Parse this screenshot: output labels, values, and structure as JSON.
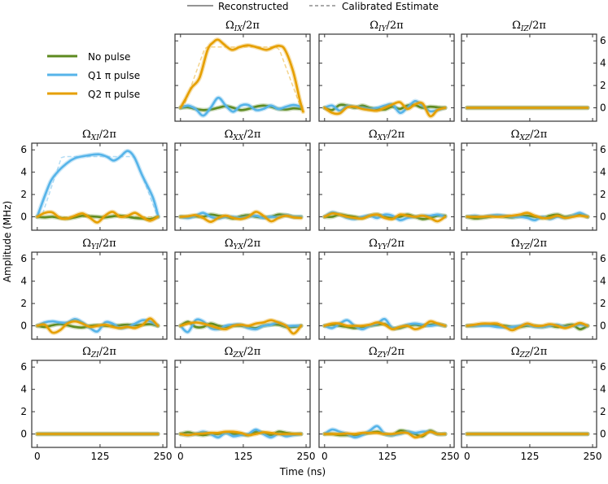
{
  "chart_data": {
    "type": "line",
    "layout": "4x4 grid of panels, top-left cell holds legend",
    "xlabel": "Time (ns)",
    "ylabel": "Amplitude (MHz)",
    "xlim": [
      -11,
      258
    ],
    "ylim": [
      -1.2,
      6.6
    ],
    "xticks": [
      0,
      125,
      250
    ],
    "yticks": [
      0,
      2,
      4,
      6
    ],
    "grid": false,
    "style_legend": [
      {
        "label": "Reconstructed",
        "style": "solid"
      },
      {
        "label": "Calibrated Estimate",
        "style": "dashed"
      }
    ],
    "series_legend": [
      {
        "key": "none",
        "label": "No pulse",
        "color": "#5d8a1f"
      },
      {
        "key": "q1",
        "label": "Q1 π pulse",
        "color": "#56b4e9"
      },
      {
        "key": "q2",
        "label": "Q2 π pulse",
        "color": "#e69f00"
      }
    ],
    "t_common": [
      0,
      15,
      30,
      45,
      60,
      75,
      90,
      105,
      120,
      135,
      150,
      165,
      180,
      195,
      210,
      225,
      240
    ],
    "panels": [
      {
        "title": {
          "sym": "Ω",
          "sub": "IX",
          "rest": "/2π"
        },
        "none": [
          0,
          0.05,
          -0.1,
          -0.2,
          -0.15,
          0,
          0.15,
          0,
          -0.2,
          -0.1,
          0.1,
          0.2,
          0.1,
          -0.1,
          -0.15,
          -0.05,
          -0.1
        ],
        "q1": [
          0,
          0.2,
          -0.1,
          -0.7,
          0,
          0.9,
          0.2,
          -0.35,
          0.2,
          0.25,
          -0.2,
          -0.1,
          0.2,
          -0.1,
          0.1,
          0.25,
          0.1
        ],
        "q2": {
          "t": [
            0,
            10,
            22,
            38,
            54,
            66,
            75,
            86,
            102,
            118,
            134,
            150,
            171,
            186,
            197,
            208,
            224,
            237,
            244
          ],
          "v": [
            0,
            0.8,
            1.8,
            2.7,
            5.2,
            5.9,
            6.1,
            5.7,
            5.2,
            5.45,
            5.6,
            5.45,
            5.2,
            5.45,
            5.55,
            5.2,
            3.3,
            0.8,
            -0.35
          ]
        },
        "calibrated": [
          {
            "key": "q2",
            "t": [
              0,
              8,
              48,
              54,
              190,
              197,
              238,
              244
            ],
            "v": [
              0,
              0.3,
              5.3,
              5.45,
              5.45,
              5.2,
              0.2,
              0
            ]
          }
        ]
      },
      {
        "title": {
          "sym": "Ω",
          "sub": "IY",
          "rest": "/2π"
        },
        "none": [
          0,
          -0.2,
          0.25,
          0.2,
          0,
          0.2,
          0,
          -0.1,
          -0.15,
          0.1,
          -0.1,
          0.2,
          0.25,
          0,
          0.1,
          0.05,
          0
        ],
        "q1": [
          0,
          0.2,
          -0.25,
          0.15,
          0.1,
          0,
          -0.1,
          0,
          0.2,
          0.3,
          -0.45,
          0,
          0.6,
          0.2,
          -0.3,
          -0.2,
          0
        ],
        "q2": [
          0,
          -0.45,
          -0.5,
          0.05,
          0.1,
          -0.1,
          -0.2,
          -0.25,
          0,
          0.3,
          0.5,
          -0.1,
          0.3,
          0.4,
          -0.75,
          -0.2,
          0
        ]
      },
      {
        "title": {
          "sym": "Ω",
          "sub": "IZ",
          "rest": "/2π"
        },
        "none": [
          0,
          0,
          0,
          0,
          0,
          0,
          0,
          0,
          0,
          0,
          0,
          0,
          0,
          0,
          0,
          0,
          0
        ],
        "q1": [
          0,
          0,
          0,
          0,
          0,
          0,
          0,
          0,
          0,
          0,
          0,
          0,
          0,
          0,
          0,
          0,
          0
        ],
        "q2": [
          0,
          0,
          0,
          0,
          0,
          0,
          0,
          0,
          0,
          0,
          0,
          0,
          0,
          0,
          0,
          0,
          0
        ]
      },
      {
        "title": {
          "sym": "Ω",
          "sub": "XI",
          "rest": "/2π"
        },
        "none": [
          0,
          -0.05,
          0,
          -0.1,
          -0.15,
          -0.05,
          0.1,
          0.05,
          0,
          -0.05,
          0.05,
          0.1,
          0,
          -0.1,
          -0.15,
          -0.2,
          0
        ],
        "q1": {
          "t": [
            0,
            14,
            27,
            40,
            51,
            65,
            78,
            100,
            122,
            138,
            151,
            160,
            167,
            180,
            193,
            209,
            230,
            241
          ],
          "v": [
            0,
            1.75,
            3.2,
            4.0,
            4.5,
            5.0,
            5.3,
            5.5,
            5.6,
            5.4,
            5.05,
            5.2,
            5.45,
            5.9,
            5.35,
            3.7,
            1.75,
            0
          ]
        },
        "q2": [
          0,
          0.35,
          0.4,
          -0.1,
          -0.15,
          0.1,
          0.3,
          -0.1,
          -0.5,
          0.1,
          0.45,
          0,
          0.1,
          0.35,
          -0.05,
          -0.35,
          0
        ],
        "calibrated": [
          {
            "key": "q1",
            "t": [
              0,
              10,
              48,
              55,
              190,
              197,
              238,
              242
            ],
            "v": [
              0,
              0.2,
              5.3,
              5.4,
              5.4,
              5.1,
              0.2,
              0
            ]
          },
          {
            "key": "q2",
            "t": [
              0,
              242
            ],
            "v": [
              0,
              0
            ]
          }
        ]
      },
      {
        "title": {
          "sym": "Ω",
          "sub": "XX",
          "rest": "/2π"
        },
        "none": [
          0,
          0,
          0.05,
          0,
          0.2,
          0.1,
          0,
          -0.15,
          0.05,
          0.15,
          0,
          -0.05,
          0,
          0.2,
          0.15,
          0,
          0
        ],
        "q1": [
          0,
          -0.1,
          0.1,
          0.35,
          0,
          -0.15,
          0,
          0,
          -0.1,
          0,
          0.1,
          -0.1,
          0,
          -0.05,
          0.15,
          0,
          0
        ],
        "q2": [
          0,
          0.05,
          0.15,
          -0.1,
          -0.45,
          -0.1,
          0.1,
          -0.1,
          -0.2,
          0,
          0.45,
          0.1,
          -0.4,
          -0.1,
          0.1,
          -0.05,
          -0.1
        ]
      },
      {
        "title": {
          "sym": "Ω",
          "sub": "XY",
          "rest": "/2π"
        },
        "none": [
          0,
          0,
          0.2,
          0.1,
          0,
          -0.1,
          0.1,
          0.2,
          0,
          -0.1,
          0,
          0.2,
          0,
          -0.2,
          -0.1,
          0.1,
          0.1
        ],
        "q1": [
          0,
          0.4,
          0.2,
          -0.1,
          -0.2,
          0,
          0.1,
          -0.1,
          0.2,
          0.1,
          -0.3,
          -0.1,
          0,
          0.1,
          0.1,
          0.2,
          0
        ],
        "q2": [
          0,
          0.3,
          0.2,
          0,
          -0.1,
          -0.15,
          0.1,
          0.2,
          -0.1,
          -0.2,
          0.2,
          0.1,
          0,
          0.1,
          -0.1,
          -0.4,
          0
        ]
      },
      {
        "title": {
          "sym": "Ω",
          "sub": "XZ",
          "rest": "/2π"
        },
        "none": [
          0,
          -0.15,
          -0.1,
          0,
          0.1,
          0,
          -0.05,
          0.05,
          0.1,
          0,
          -0.1,
          0.1,
          0.2,
          0,
          0.1,
          0.2,
          0
        ],
        "q1": [
          0,
          0.1,
          0,
          0.1,
          0.15,
          0.1,
          0,
          0,
          -0.1,
          -0.3,
          0,
          -0.2,
          0,
          -0.1,
          0.1,
          0.35,
          0
        ],
        "q2": [
          0,
          0,
          0,
          0.05,
          0,
          0.05,
          0.1,
          0.2,
          0.35,
          0.1,
          -0.1,
          -0.1,
          0.1,
          -0.1,
          0,
          0.1,
          0
        ]
      },
      {
        "title": {
          "sym": "Ω",
          "sub": "YI",
          "rest": "/2π"
        },
        "none": [
          0,
          -0.1,
          0.05,
          0.15,
          0.05,
          -0.1,
          -0.15,
          0,
          0.05,
          0,
          0,
          0.05,
          0.1,
          0.05,
          0.1,
          0.15,
          0
        ],
        "q1": [
          0,
          0.3,
          0.4,
          0.3,
          0.3,
          0.6,
          0.3,
          -0.2,
          -0.5,
          0.3,
          0.2,
          -0.2,
          -0.1,
          0.2,
          0.5,
          0.4,
          0
        ],
        "q2": [
          0,
          0.1,
          -0.6,
          -0.4,
          0.2,
          0.4,
          0.2,
          -0.1,
          0,
          0.1,
          -0.1,
          -0.2,
          -0.1,
          -0.2,
          0.1,
          0.65,
          0
        ]
      },
      {
        "title": {
          "sym": "Ω",
          "sub": "YX",
          "rest": "/2π"
        },
        "none": [
          0,
          0.35,
          -0.1,
          -0.1,
          0.2,
          0,
          -0.1,
          0,
          0,
          -0.1,
          -0.2,
          0,
          0.1,
          0.1,
          -0.1,
          -0.1,
          0
        ],
        "q1": [
          0,
          -0.55,
          0.5,
          0.4,
          -0.2,
          -0.3,
          0,
          0.1,
          0.1,
          -0.2,
          -0.3,
          0,
          0.1,
          0.3,
          0,
          0,
          0
        ],
        "q2": [
          0,
          0.2,
          0.3,
          0.2,
          0,
          -0.2,
          -0.3,
          0,
          0.1,
          0,
          0.2,
          0.3,
          0.5,
          0.3,
          0,
          -0.7,
          0
        ]
      },
      {
        "title": {
          "sym": "Ω",
          "sub": "YY",
          "rest": "/2π"
        },
        "none": [
          0,
          0.1,
          0,
          -0.1,
          -0.2,
          -0.1,
          0,
          0.1,
          0.15,
          -0.2,
          -0.2,
          0,
          0.1,
          0,
          0.1,
          0.15,
          0
        ],
        "q1": [
          0,
          -0.2,
          0.2,
          0.5,
          0,
          -0.3,
          0,
          0.2,
          0.6,
          -0.2,
          -0.1,
          0.1,
          0.2,
          0.1,
          0,
          0.1,
          0
        ],
        "q2": [
          0,
          0.2,
          0.2,
          0,
          0,
          0,
          0.1,
          0.3,
          0.1,
          -0.3,
          -0.1,
          0,
          -0.3,
          -0.1,
          0.4,
          0.2,
          0
        ]
      },
      {
        "title": {
          "sym": "Ω",
          "sub": "YZ",
          "rest": "/2π"
        },
        "none": [
          0,
          0,
          0.1,
          0.1,
          0,
          0,
          -0.1,
          -0.1,
          0,
          0,
          -0.1,
          0,
          -0.1,
          0,
          0.1,
          -0.3,
          0
        ],
        "q1": [
          0,
          0,
          0,
          0,
          -0.1,
          -0.15,
          -0.1,
          0,
          0.1,
          -0.1,
          -0.1,
          0,
          0.1,
          -0.1,
          0,
          0.1,
          0
        ],
        "q2": [
          0,
          0.1,
          0.2,
          0.2,
          0.2,
          -0.1,
          -0.4,
          -0.1,
          0.2,
          0,
          0,
          0.15,
          0,
          -0.2,
          0,
          0.25,
          0
        ]
      },
      {
        "title": {
          "sym": "Ω",
          "sub": "ZI",
          "rest": "/2π"
        },
        "none": [
          0,
          0,
          0,
          0,
          0,
          0,
          0,
          0,
          0,
          0,
          0,
          0,
          0,
          0,
          0,
          0,
          0
        ],
        "q1": [
          0,
          0,
          0,
          0,
          0,
          0,
          0,
          0,
          0,
          0,
          0,
          0,
          0,
          0,
          0,
          0,
          0
        ],
        "q2": [
          0,
          0,
          0,
          0,
          0,
          0,
          0,
          0,
          0,
          0,
          0,
          0,
          0,
          0,
          0,
          0,
          0
        ]
      },
      {
        "title": {
          "sym": "Ω",
          "sub": "ZX",
          "rest": "/2π"
        },
        "none": [
          0,
          0.15,
          0,
          -0.1,
          0,
          0,
          0.1,
          0,
          0,
          -0.1,
          0.2,
          0.1,
          -0.1,
          0.2,
          0.1,
          0,
          0
        ],
        "q1": [
          0,
          -0.1,
          0,
          0.2,
          0,
          -0.3,
          0.1,
          -0.2,
          -0.1,
          0,
          0.4,
          0,
          -0.3,
          0,
          -0.2,
          -0.1,
          0
        ],
        "q2": [
          0,
          -0.1,
          0,
          0.05,
          0.1,
          0.1,
          0.2,
          0.2,
          0.1,
          -0.1,
          0,
          0.15,
          0.1,
          0,
          0,
          0,
          0
        ]
      },
      {
        "title": {
          "sym": "Ω",
          "sub": "ZY",
          "rest": "/2π"
        },
        "none": [
          0,
          0,
          -0.1,
          -0.1,
          -0.1,
          0,
          0.1,
          0.2,
          0,
          -0.1,
          0.3,
          0.2,
          0,
          -0.2,
          0.3,
          0,
          0
        ],
        "q1": [
          0,
          0.4,
          0.2,
          0,
          -0.3,
          -0.1,
          0.3,
          0.7,
          0,
          -0.1,
          0,
          0.2,
          0.1,
          0.2,
          0.2,
          0,
          0
        ],
        "q2": [
          0,
          0,
          0,
          0.05,
          0,
          0.1,
          0.1,
          0.1,
          0,
          0,
          0.1,
          0.1,
          -0.3,
          -0.1,
          0.2,
          0,
          0
        ]
      },
      {
        "title": {
          "sym": "Ω",
          "sub": "ZZ",
          "rest": "/2π"
        },
        "none": [
          0,
          0,
          0,
          0,
          0,
          0,
          0,
          0,
          0,
          0,
          0,
          0,
          0,
          0,
          0,
          0,
          0
        ],
        "q1": [
          0,
          0,
          0,
          0,
          0,
          0,
          0,
          0,
          0,
          0,
          0,
          0,
          0,
          0,
          0,
          0,
          0
        ],
        "q2": [
          0,
          0,
          0,
          0,
          0,
          0,
          0,
          0,
          0,
          0,
          0,
          0,
          0,
          0,
          0,
          0,
          0
        ]
      }
    ]
  }
}
